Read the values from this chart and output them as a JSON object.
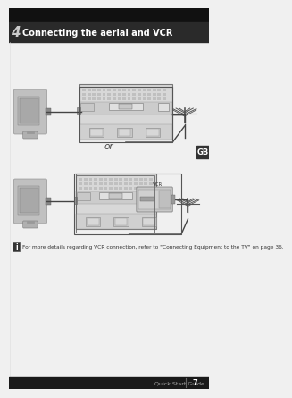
{
  "title_number": "4",
  "title_text": "Connecting the aerial and VCR",
  "title_bg": "#2a2a2a",
  "title_text_color": "#ffffff",
  "title_number_bg": "#d4d4d4",
  "page_bg": "#f0f0f0",
  "or_text": "or",
  "note_box_color": "#333333",
  "note_text": "For more details regarding VCR connection, refer to \"Connecting Equipment to the TV\" on page 36.",
  "gb_label": "GB",
  "gb_bg": "#333333",
  "gb_text_color": "#ffffff",
  "footer_text": "Quick Start Guide",
  "footer_page": "7",
  "footer_bg": "#1a1a1a",
  "footer_sep_color": "#666666",
  "vcr_label": "VCR",
  "tv_body_color": "#c8c8c8",
  "tv_screen_color": "#a0a0a0",
  "panel_bg": "#d8d8d8",
  "panel_light": "#e8e8e8",
  "panel_dark": "#b0b0b0",
  "aerial_color": "#555555",
  "cable_color": "#444444",
  "note_icon_bg": "#333333",
  "border_color": "#555555"
}
